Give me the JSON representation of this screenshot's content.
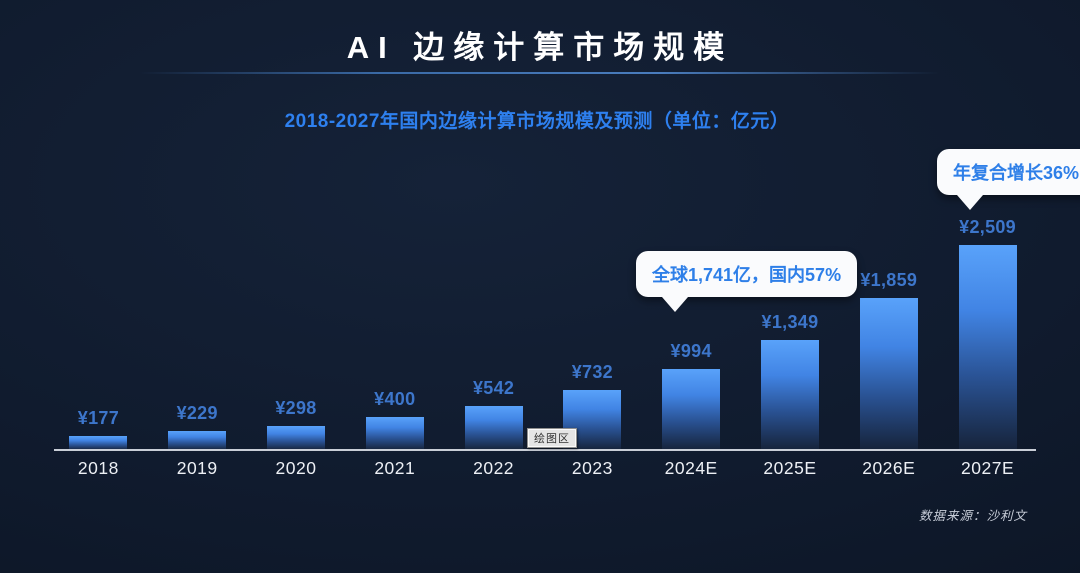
{
  "header": {
    "title": "AI 边缘计算市场规模"
  },
  "subtitle": "2018-2027年国内边缘计算市场规模及预测（单位：亿元）",
  "chart_data": {
    "type": "bar",
    "title": "2018-2027年国内边缘计算市场规模及预测",
    "unit": "亿元",
    "categories": [
      "2018",
      "2019",
      "2020",
      "2021",
      "2022",
      "2023",
      "2024E",
      "2025E",
      "2026E",
      "2027E"
    ],
    "values": [
      177,
      229,
      298,
      400,
      542,
      732,
      994,
      1349,
      1859,
      2509
    ],
    "value_labels": [
      "¥177",
      "¥229",
      "¥298",
      "¥400",
      "¥542",
      "¥732",
      "¥994",
      "¥1,349",
      "¥1,859",
      "¥2,509"
    ],
    "ylim": [
      0,
      2600
    ],
    "grid": false,
    "legend": false,
    "bar_color_top": "#59A2FA",
    "bar_color_bottom": "#16233A"
  },
  "callouts": [
    {
      "text": "全球1,741亿，国内57%"
    },
    {
      "text": "年复合增长36%"
    }
  ],
  "tooltip": {
    "text": "绘图区"
  },
  "source": "数据来源：沙利文",
  "colors": {
    "subtitle_blue": "#2E80EF",
    "value_label_blue": "#3D76CB",
    "callout_text_blue": "#2E7FE8",
    "axis_gray": "#C9CED7",
    "background_navy": "#101B2E"
  }
}
